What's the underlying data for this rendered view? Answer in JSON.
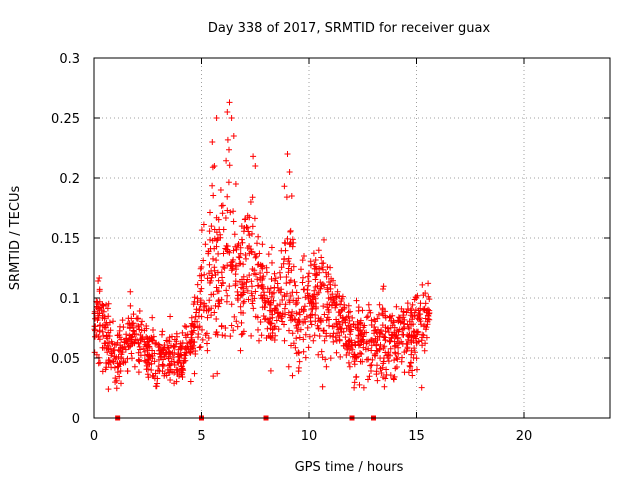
{
  "chart_data": {
    "type": "scatter",
    "title": "Day 338 of 2017, SRMTID for receiver guax",
    "xlabel": "GPS time / hours",
    "ylabel": "SRMTID / TECUs",
    "xlim": [
      0,
      24
    ],
    "ylim": [
      0,
      0.3
    ],
    "x_ticks": [
      0,
      5,
      10,
      15,
      20
    ],
    "x_tick_labels": [
      "0",
      "5",
      "10",
      "15",
      "20"
    ],
    "y_ticks": [
      0,
      0.05,
      0.1,
      0.15,
      0.2,
      0.25,
      0.3
    ],
    "y_tick_labels": [
      "0",
      "0.05",
      "0.1",
      "0.15",
      "0.2",
      "0.25",
      "0.3"
    ],
    "grid": true,
    "marker": "+",
    "marker_color": "#ff0000",
    "axis_markers_x": [
      1.1,
      5.0,
      8.0,
      12.0,
      13.0
    ],
    "series": [
      {
        "name": "SRMTID",
        "profile": [
          {
            "x": 0.0,
            "mean": 0.072,
            "spread": 0.025
          },
          {
            "x": 0.3,
            "mean": 0.085,
            "spread": 0.03
          },
          {
            "x": 0.6,
            "mean": 0.065,
            "spread": 0.025
          },
          {
            "x": 1.0,
            "mean": 0.05,
            "spread": 0.02
          },
          {
            "x": 1.5,
            "mean": 0.06,
            "spread": 0.022
          },
          {
            "x": 2.0,
            "mean": 0.07,
            "spread": 0.025
          },
          {
            "x": 2.5,
            "mean": 0.055,
            "spread": 0.02
          },
          {
            "x": 3.0,
            "mean": 0.05,
            "spread": 0.018
          },
          {
            "x": 3.5,
            "mean": 0.05,
            "spread": 0.018
          },
          {
            "x": 4.0,
            "mean": 0.048,
            "spread": 0.018
          },
          {
            "x": 4.5,
            "mean": 0.06,
            "spread": 0.022
          },
          {
            "x": 5.0,
            "mean": 0.09,
            "spread": 0.035
          },
          {
            "x": 5.5,
            "mean": 0.13,
            "spread": 0.06
          },
          {
            "x": 6.0,
            "mean": 0.11,
            "spread": 0.05
          },
          {
            "x": 6.3,
            "mean": 0.15,
            "spread": 0.08
          },
          {
            "x": 6.7,
            "mean": 0.1,
            "spread": 0.04
          },
          {
            "x": 7.2,
            "mean": 0.13,
            "spread": 0.05
          },
          {
            "x": 7.6,
            "mean": 0.12,
            "spread": 0.035
          },
          {
            "x": 8.0,
            "mean": 0.1,
            "spread": 0.03
          },
          {
            "x": 8.5,
            "mean": 0.085,
            "spread": 0.03
          },
          {
            "x": 9.0,
            "mean": 0.12,
            "spread": 0.06
          },
          {
            "x": 9.5,
            "mean": 0.075,
            "spread": 0.03
          },
          {
            "x": 10.0,
            "mean": 0.1,
            "spread": 0.04
          },
          {
            "x": 10.5,
            "mean": 0.105,
            "spread": 0.04
          },
          {
            "x": 11.0,
            "mean": 0.09,
            "spread": 0.03
          },
          {
            "x": 11.5,
            "mean": 0.085,
            "spread": 0.025
          },
          {
            "x": 12.0,
            "mean": 0.06,
            "spread": 0.025
          },
          {
            "x": 12.5,
            "mean": 0.065,
            "spread": 0.025
          },
          {
            "x": 13.0,
            "mean": 0.06,
            "spread": 0.025
          },
          {
            "x": 13.5,
            "mean": 0.07,
            "spread": 0.028
          },
          {
            "x": 14.0,
            "mean": 0.065,
            "spread": 0.025
          },
          {
            "x": 14.5,
            "mean": 0.07,
            "spread": 0.025
          },
          {
            "x": 15.0,
            "mean": 0.075,
            "spread": 0.03
          },
          {
            "x": 15.5,
            "mean": 0.08,
            "spread": 0.025
          }
        ],
        "n_points": 1500,
        "x_range": [
          0.0,
          15.6
        ],
        "peaks": [
          {
            "x": 5.5,
            "y": 0.23
          },
          {
            "x": 5.6,
            "y": 0.21
          },
          {
            "x": 5.7,
            "y": 0.25
          },
          {
            "x": 6.3,
            "y": 0.263
          },
          {
            "x": 6.2,
            "y": 0.255
          },
          {
            "x": 6.4,
            "y": 0.25
          },
          {
            "x": 6.5,
            "y": 0.235
          },
          {
            "x": 7.4,
            "y": 0.218
          },
          {
            "x": 7.5,
            "y": 0.21
          },
          {
            "x": 9.0,
            "y": 0.22
          },
          {
            "x": 9.1,
            "y": 0.205
          },
          {
            "x": 9.2,
            "y": 0.185
          },
          {
            "x": 6.6,
            "y": 0.195
          },
          {
            "x": 5.9,
            "y": 0.19
          },
          {
            "x": 7.3,
            "y": 0.18
          }
        ]
      }
    ]
  }
}
